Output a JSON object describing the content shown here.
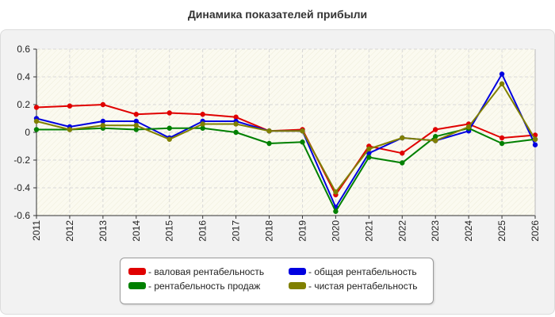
{
  "chart_data": {
    "type": "line",
    "title": "Динамика показателей прибыли",
    "xlabel": "",
    "ylabel": "",
    "x": [
      "2011",
      "2012",
      "2013",
      "2014",
      "2015",
      "2016",
      "2017",
      "2018",
      "2019",
      "2020",
      "2021",
      "2022",
      "2023",
      "2024",
      "2025",
      "2026"
    ],
    "ylim": [
      -0.6,
      0.6
    ],
    "yticks": [
      "0.6",
      "0.4",
      "0.2",
      "0",
      "-0.2",
      "-0.4",
      "-0.6"
    ],
    "grid": true,
    "legend_position": "bottom",
    "series": [
      {
        "name": "- валовая рентабельность",
        "color": "#e00000",
        "values": [
          0.18,
          0.19,
          0.2,
          0.13,
          0.14,
          0.13,
          0.11,
          0.01,
          0.02,
          -0.45,
          -0.1,
          -0.15,
          0.02,
          0.06,
          -0.04,
          -0.02
        ]
      },
      {
        "name": "- общая рентабельность",
        "color": "#0000e0",
        "values": [
          0.1,
          0.04,
          0.08,
          0.08,
          -0.04,
          0.08,
          0.08,
          0.01,
          0.01,
          -0.54,
          -0.15,
          -0.04,
          -0.06,
          0.01,
          0.42,
          -0.09
        ]
      },
      {
        "name": "- рентабельность продаж",
        "color": "#008000",
        "values": [
          0.02,
          0.02,
          0.03,
          0.02,
          0.03,
          0.03,
          0.0,
          -0.08,
          -0.07,
          -0.57,
          -0.18,
          -0.22,
          -0.03,
          0.03,
          -0.08,
          -0.05
        ]
      },
      {
        "name": "- чистая рентабельность",
        "color": "#808000",
        "values": [
          0.08,
          0.02,
          0.05,
          0.05,
          -0.05,
          0.06,
          0.06,
          0.01,
          0.01,
          -0.43,
          -0.12,
          -0.04,
          -0.06,
          0.04,
          0.35,
          -0.05
        ]
      }
    ]
  }
}
